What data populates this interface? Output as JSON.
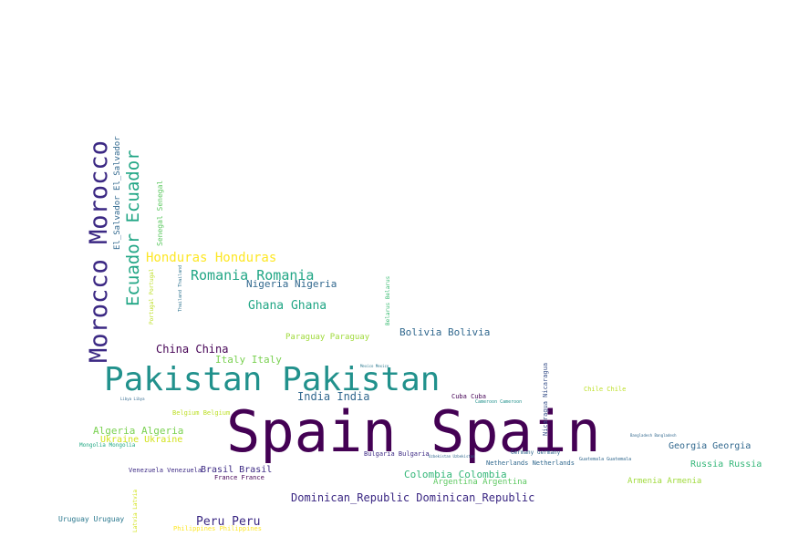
{
  "palette": {
    "dark_purple": "#440154",
    "indigo": "#3b2883",
    "blue": "#31688e",
    "teal": "#21918c",
    "green": "#35b779",
    "light_green": "#90d743",
    "yellow": "#fde725"
  },
  "words": [
    {
      "text": "Spain Spain",
      "color": "#440154"
    },
    {
      "text": "Pakistan Pakistan",
      "color": "#21918c"
    },
    {
      "text": "Morocco Morocco",
      "color": "#3b2883"
    },
    {
      "text": "Ecuador Ecuador",
      "color": "#21a685"
    },
    {
      "text": "Romania Romania",
      "color": "#21a685"
    },
    {
      "text": "Honduras Honduras",
      "color": "#fde725"
    },
    {
      "text": "Nigeria Nigeria",
      "color": "#31688e"
    },
    {
      "text": "Ghana Ghana",
      "color": "#21a685"
    },
    {
      "text": "El_Salvador El_Salvador",
      "color": "#31688e"
    },
    {
      "text": "Senegal Senegal",
      "color": "#5ec962"
    },
    {
      "text": "Portugal Portugal",
      "color": "#bddf26"
    },
    {
      "text": "Thailand Thailand",
      "color": "#2c728e"
    },
    {
      "text": "Belarus Belarus",
      "color": "#3dbc74"
    },
    {
      "text": "China China",
      "color": "#440154"
    },
    {
      "text": "Italy Italy",
      "color": "#7ad151"
    },
    {
      "text": "Paraguay Paraguay",
      "color": "#9fda3a"
    },
    {
      "text": "Bolivia Bolivia",
      "color": "#31688e"
    },
    {
      "text": "India India",
      "color": "#31688e"
    },
    {
      "text": "Mexico Mexico",
      "color": "#2a788e"
    },
    {
      "text": "Libya Libya",
      "color": "#31688e"
    },
    {
      "text": "Belgium Belgium",
      "color": "#bddf26"
    },
    {
      "text": "Nicaragua Nicaragua",
      "color": "#3b528b"
    },
    {
      "text": "Chile Chile",
      "color": "#bddf26"
    },
    {
      "text": "Cuba Cuba",
      "color": "#440154"
    },
    {
      "text": "Cameroon Cameroon",
      "color": "#21918c"
    },
    {
      "text": "Algeria Algeria",
      "color": "#7ad151"
    },
    {
      "text": "Ukraine Ukraine",
      "color": "#d2e21b"
    },
    {
      "text": "Mongolia Mongolia",
      "color": "#22a884"
    },
    {
      "text": "Bangladesh Bangladesh",
      "color": "#31688e"
    },
    {
      "text": "Georgia Georgia",
      "color": "#31688e"
    },
    {
      "text": "Bulgaria Bulgaria",
      "color": "#3b2883"
    },
    {
      "text": "Uzbekistan Uzbekistan",
      "color": "#31688e"
    },
    {
      "text": "Germany Germany",
      "color": "#31688e"
    },
    {
      "text": "Netherlands Netherlands",
      "color": "#31688e"
    },
    {
      "text": "Guatemala Guatemala",
      "color": "#31688e"
    },
    {
      "text": "Russia Russia",
      "color": "#35b779"
    },
    {
      "text": "Armenia Armenia",
      "color": "#9fda3a"
    },
    {
      "text": "Venezuela Venezuela",
      "color": "#3b2883"
    },
    {
      "text": "Brasil Brasil",
      "color": "#3b2883"
    },
    {
      "text": "France France",
      "color": "#440154"
    },
    {
      "text": "Colombia Colombia",
      "color": "#35b779"
    },
    {
      "text": "Argentina Argentina",
      "color": "#5ec962"
    },
    {
      "text": "Latvia Latvia",
      "color": "#d2e21b"
    },
    {
      "text": "Dominican_Republic Dominican_Republic",
      "color": "#3b2883"
    },
    {
      "text": "Uruguay Uruguay",
      "color": "#2a788e"
    },
    {
      "text": "Peru Peru",
      "color": "#3b2883"
    },
    {
      "text": "Philippines Philippines",
      "color": "#fde725"
    }
  ]
}
